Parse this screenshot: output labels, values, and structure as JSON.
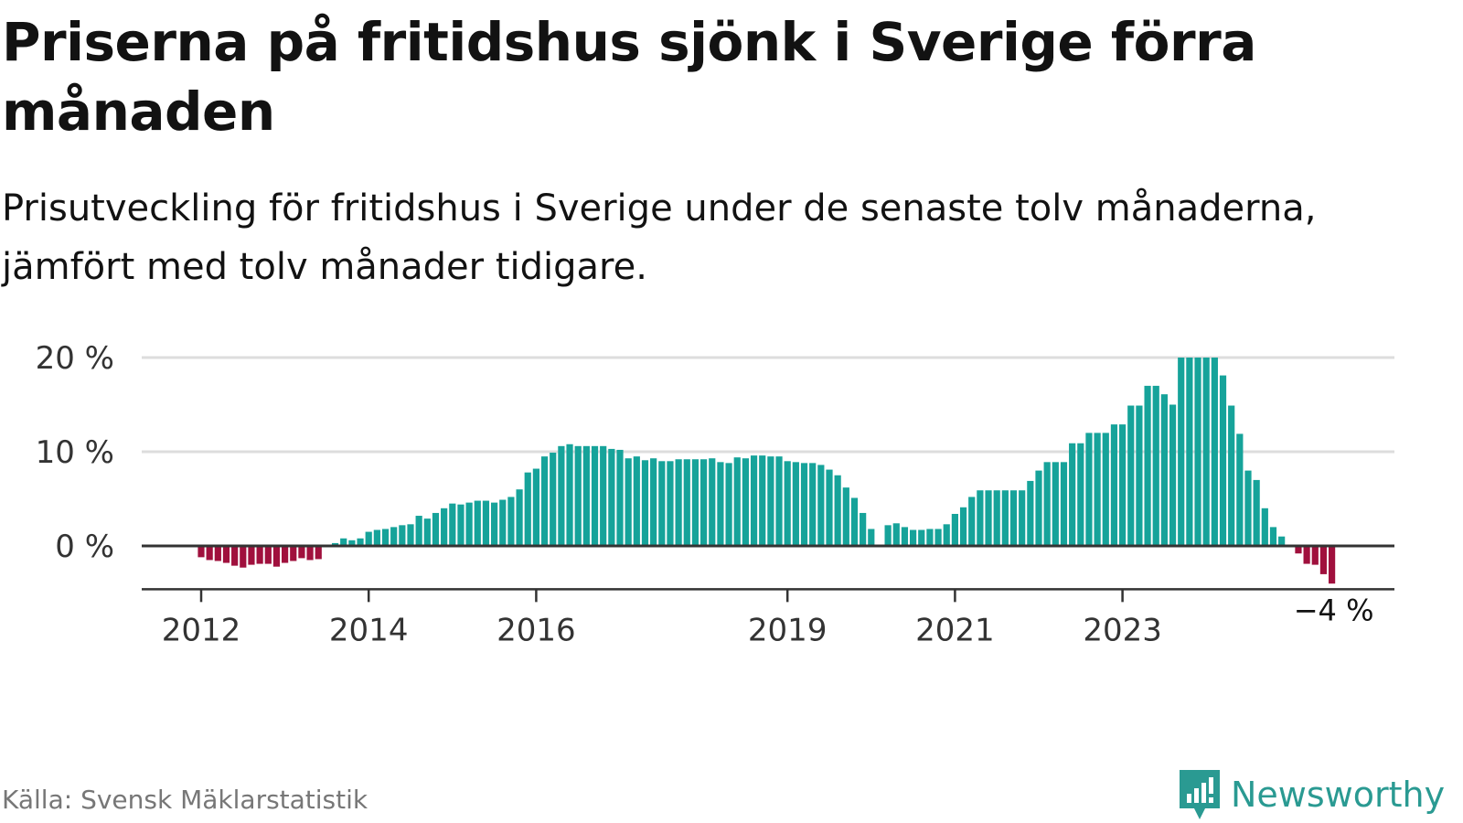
{
  "title": "Priserna på fritidshus sjönk i Sverige förra månaden",
  "subtitle": "Prisutveckling för fritidshus i Sverige under de senaste tolv månaderna, jämfört med tolv månader tidigare.",
  "source": "Källa: Svensk Mäklarstatistik",
  "brand": {
    "name": "Newsworthy",
    "icon": "newsworthy-logo-icon"
  },
  "colors": {
    "positive": "#16a39a",
    "negative": "#a0103d",
    "grid": "#dddddd",
    "zero_line": "#333333",
    "brand": "#2a9a92"
  },
  "chart_data": {
    "type": "bar",
    "ylim": [
      -4.5,
      20
    ],
    "grid": true,
    "yticks": [
      {
        "value": 0,
        "label": "0 %"
      },
      {
        "value": 10,
        "label": "10 %"
      },
      {
        "value": 20,
        "label": "20 %"
      }
    ],
    "xticks": [
      {
        "index": 0,
        "label": "2012"
      },
      {
        "index": 20,
        "label": "2014"
      },
      {
        "index": 40,
        "label": "2016"
      },
      {
        "index": 70,
        "label": "2019"
      },
      {
        "index": 90,
        "label": "2021"
      },
      {
        "index": 110,
        "label": "2023"
      }
    ],
    "last_value_label": "−4 %",
    "values": [
      -1.2,
      -1.5,
      -1.6,
      -1.8,
      -2.1,
      -2.3,
      -2.0,
      -1.9,
      -1.9,
      -2.2,
      -1.8,
      -1.6,
      -1.3,
      -1.5,
      -1.4,
      0,
      0.3,
      0.8,
      0.6,
      0.8,
      1.5,
      1.7,
      1.8,
      2.0,
      2.2,
      2.3,
      3.2,
      2.9,
      3.5,
      4.0,
      4.5,
      4.4,
      4.6,
      4.8,
      4.8,
      4.6,
      4.9,
      5.2,
      6.0,
      7.8,
      8.2,
      9.5,
      9.9,
      10.6,
      10.8,
      10.6,
      10.6,
      10.6,
      10.6,
      10.3,
      10.2,
      9.3,
      9.5,
      9.1,
      9.3,
      9.0,
      9.0,
      9.2,
      9.2,
      9.2,
      9.2,
      9.3,
      8.9,
      8.8,
      9.4,
      9.3,
      9.6,
      9.6,
      9.5,
      9.5,
      9.0,
      8.9,
      8.8,
      8.8,
      8.6,
      8.1,
      7.5,
      6.2,
      5.1,
      3.5,
      1.8,
      null,
      2.2,
      2.4,
      2.0,
      1.7,
      1.7,
      1.8,
      1.8,
      2.3,
      3.4,
      4.1,
      5.2,
      5.9,
      5.9,
      5.9,
      5.9,
      5.9,
      5.9,
      6.9,
      8.0,
      8.9,
      8.9,
      8.9,
      10.9,
      10.9,
      12.0,
      12.0,
      12.0,
      12.9,
      12.9,
      14.9,
      14.9,
      17.0,
      17.0,
      16.1,
      15.0,
      20.0,
      20.0,
      20.0,
      20.0,
      20.0,
      18.1,
      14.9,
      11.9,
      8.0,
      7.0,
      4.0,
      2.0,
      1.0,
      0,
      -0.8,
      -1.9,
      -2.0,
      -3.0,
      -4.0
    ]
  }
}
